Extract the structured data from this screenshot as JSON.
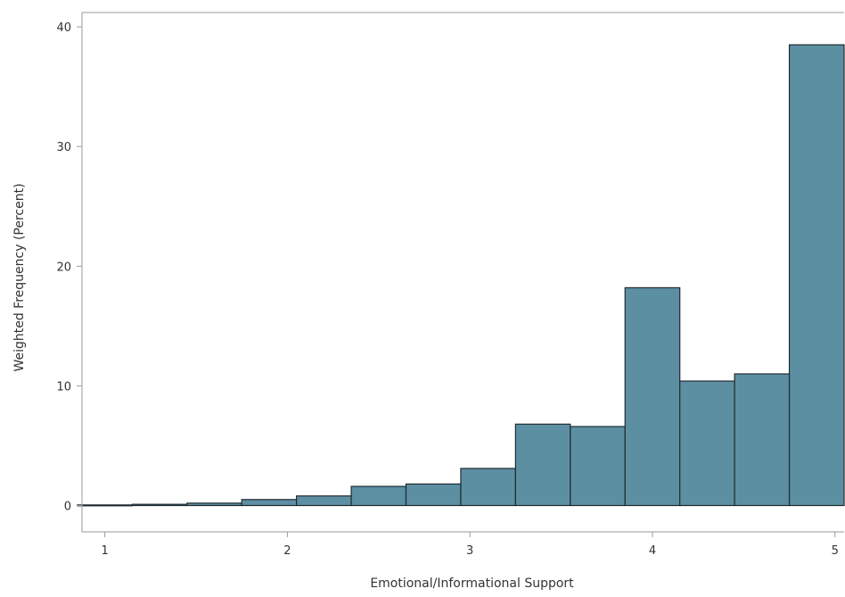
{
  "chart_data": {
    "type": "bar",
    "subtype": "histogram",
    "title": "",
    "xlabel": "Emotional/Informational Support",
    "ylabel": "Weighted Frequency (Percent)",
    "xlim": [
      0.875,
      5.05
    ],
    "ylim": [
      -2.2,
      41.2
    ],
    "x_ticks": [
      1,
      2,
      3,
      4,
      5
    ],
    "y_ticks": [
      0,
      10,
      20,
      30,
      40
    ],
    "bin_width": 0.3,
    "bins": [
      {
        "x0": 0.85,
        "x1": 1.15,
        "value": 0.05
      },
      {
        "x0": 1.15,
        "x1": 1.45,
        "value": 0.1
      },
      {
        "x0": 1.45,
        "x1": 1.75,
        "value": 0.2
      },
      {
        "x0": 1.75,
        "x1": 2.05,
        "value": 0.5
      },
      {
        "x0": 2.05,
        "x1": 2.35,
        "value": 0.8
      },
      {
        "x0": 2.35,
        "x1": 2.65,
        "value": 1.6
      },
      {
        "x0": 2.65,
        "x1": 2.95,
        "value": 1.8
      },
      {
        "x0": 2.95,
        "x1": 3.25,
        "value": 3.1
      },
      {
        "x0": 3.25,
        "x1": 3.55,
        "value": 6.8
      },
      {
        "x0": 3.55,
        "x1": 3.85,
        "value": 6.6
      },
      {
        "x0": 3.85,
        "x1": 4.15,
        "value": 18.2
      },
      {
        "x0": 4.15,
        "x1": 4.45,
        "value": 10.4
      },
      {
        "x0": 4.45,
        "x1": 4.75,
        "value": 11.0
      },
      {
        "x0": 4.75,
        "x1": 5.05,
        "value": 38.5
      }
    ],
    "grid": false,
    "legend": "none",
    "colors": {
      "bar_fill": "#5d8fa3",
      "bar_stroke": "#1f2b30",
      "axis": "#9a9a9a",
      "text": "#333333"
    }
  }
}
